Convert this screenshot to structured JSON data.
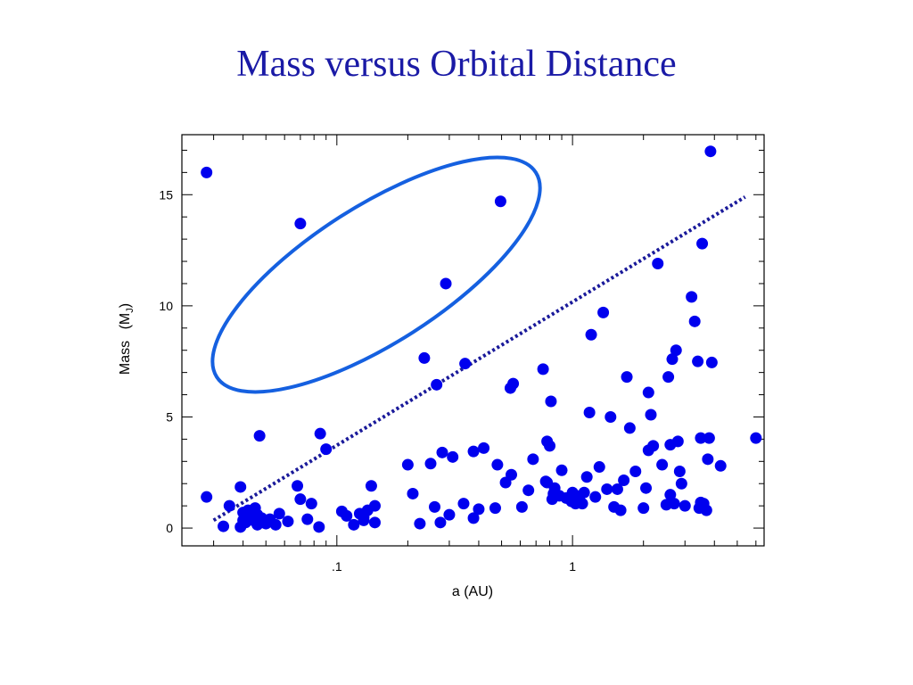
{
  "title": "Mass versus Orbital Distance",
  "chart_data": {
    "type": "scatter",
    "xlabel": "a (AU)",
    "ylabel_main": "Mass",
    "ylabel_sym": "M",
    "ylabel_sub": "J",
    "x_scale": "log",
    "xlim": [
      0.022,
      6.5
    ],
    "ylim": [
      -0.8,
      17.7
    ],
    "x_tick_labels": [
      {
        "value": 0.1,
        "label": ".1"
      },
      {
        "value": 1,
        "label": "1"
      }
    ],
    "y_ticks": [
      0,
      5,
      10,
      15
    ],
    "point_color": "#0000ee",
    "ellipse_color": "#1560e0",
    "trend_color": "#1a1a9a",
    "ellipse": {
      "center": [
        0.18,
        11.4
      ],
      "x_range": [
        0.027,
        0.8
      ],
      "y_range": [
        6.4,
        16.4
      ]
    },
    "trend_line": {
      "from": [
        0.03,
        0.35
      ],
      "to": [
        5.4,
        14.9
      ]
    },
    "x": [
      0.028,
      0.028,
      0.033,
      0.035,
      0.039,
      0.039,
      0.04,
      0.04,
      0.041,
      0.041,
      0.042,
      0.042,
      0.043,
      0.044,
      0.045,
      0.045,
      0.046,
      0.046,
      0.047,
      0.048,
      0.05,
      0.052,
      0.055,
      0.057,
      0.062,
      0.068,
      0.07,
      0.07,
      0.075,
      0.078,
      0.084,
      0.085,
      0.09,
      0.105,
      0.11,
      0.118,
      0.125,
      0.13,
      0.13,
      0.135,
      0.14,
      0.145,
      0.145,
      0.2,
      0.21,
      0.225,
      0.235,
      0.25,
      0.26,
      0.265,
      0.275,
      0.28,
      0.29,
      0.3,
      0.31,
      0.345,
      0.35,
      0.38,
      0.38,
      0.4,
      0.42,
      0.47,
      0.48,
      0.495,
      0.52,
      0.545,
      0.55,
      0.56,
      0.61,
      0.65,
      0.68,
      0.75,
      0.77,
      0.78,
      0.78,
      0.8,
      0.81,
      0.82,
      0.83,
      0.84,
      0.88,
      0.9,
      0.94,
      0.99,
      1.0,
      1.02,
      1.03,
      1.05,
      1.07,
      1.1,
      1.12,
      1.15,
      1.18,
      1.2,
      1.25,
      1.3,
      1.35,
      1.4,
      1.45,
      1.5,
      1.55,
      1.6,
      1.65,
      1.7,
      1.75,
      1.85,
      2.0,
      2.05,
      2.1,
      2.1,
      2.15,
      2.2,
      2.3,
      2.4,
      2.5,
      2.55,
      2.6,
      2.6,
      2.65,
      2.7,
      2.75,
      2.8,
      2.85,
      2.9,
      3.0,
      3.2,
      3.3,
      3.4,
      3.45,
      3.5,
      3.5,
      3.55,
      3.6,
      3.7,
      3.75,
      3.8,
      3.85,
      3.9,
      4.25,
      6.0
    ],
    "y": [
      16.0,
      1.4,
      0.08,
      1.0,
      1.85,
      0.05,
      0.35,
      0.7,
      0.6,
      0.25,
      0.8,
      0.45,
      0.7,
      0.5,
      0.9,
      0.3,
      0.6,
      0.15,
      4.15,
      0.45,
      0.2,
      0.4,
      0.15,
      0.65,
      0.3,
      1.9,
      1.3,
      13.7,
      0.4,
      1.1,
      0.05,
      4.25,
      3.55,
      0.75,
      0.55,
      0.15,
      0.65,
      0.35,
      0.5,
      0.8,
      1.9,
      1.0,
      0.25,
      2.85,
      1.55,
      0.2,
      7.65,
      2.9,
      0.95,
      6.45,
      0.25,
      3.4,
      11.0,
      0.6,
      3.2,
      1.1,
      7.4,
      0.45,
      3.45,
      0.85,
      3.6,
      0.9,
      2.85,
      14.7,
      2.05,
      6.3,
      2.4,
      6.5,
      0.95,
      1.7,
      3.1,
      7.15,
      2.1,
      2.05,
      3.9,
      3.7,
      5.7,
      1.3,
      1.55,
      1.8,
      1.45,
      2.6,
      1.35,
      1.2,
      1.6,
      1.5,
      1.1,
      1.3,
      1.25,
      1.1,
      1.6,
      2.3,
      5.2,
      8.7,
      1.4,
      2.75,
      9.7,
      1.75,
      5.0,
      0.95,
      1.75,
      0.8,
      2.15,
      6.8,
      4.5,
      2.55,
      0.9,
      1.8,
      6.1,
      3.5,
      5.1,
      3.7,
      11.9,
      2.85,
      1.05,
      6.8,
      3.75,
      1.5,
      7.6,
      1.1,
      8.0,
      3.9,
      2.55,
      2.0,
      1.0,
      10.4,
      9.3,
      7.5,
      0.9,
      4.05,
      1.15,
      12.8,
      1.1,
      0.8,
      3.1,
      4.05,
      16.95,
      7.45,
      2.8,
      4.05
    ]
  }
}
